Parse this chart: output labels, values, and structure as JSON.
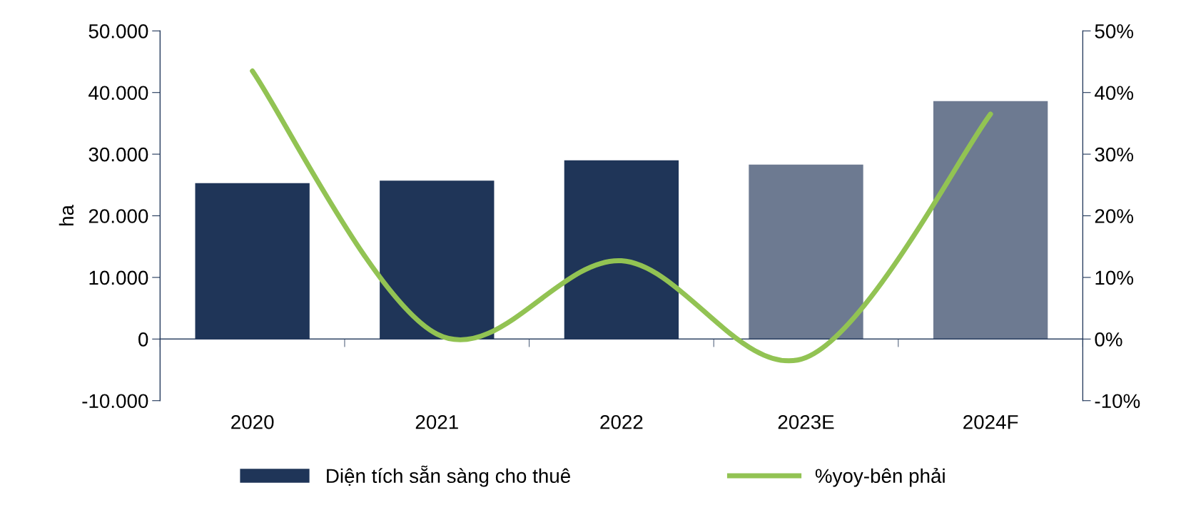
{
  "chart_data": {
    "type": "bar",
    "ylabel": "ha",
    "categories": [
      "2020",
      "2021",
      "2022",
      "2023E",
      "2024F"
    ],
    "series": [
      {
        "name": "Diện tích sẵn sàng cho thuê",
        "type": "bar",
        "color": "#1f3558",
        "colors": [
          "#1f3558",
          "#1f3558",
          "#1f3558",
          "#6d7a91",
          "#6d7a91"
        ],
        "values": [
          25300,
          25700,
          29000,
          28300,
          38600
        ]
      },
      {
        "name": "%yoy-bên phải",
        "type": "line",
        "axis": "y2",
        "color": "#92c353",
        "values": [
          43.5,
          0.8,
          12.7,
          -3,
          36.5
        ]
      }
    ],
    "ylim": [
      -10000,
      50000
    ],
    "yticks": [
      {
        "value": -10000,
        "label": "-10.000"
      },
      {
        "value": 0,
        "label": "0"
      },
      {
        "value": 10000,
        "label": "10.000"
      },
      {
        "value": 20000,
        "label": "20.000"
      },
      {
        "value": 30000,
        "label": "30.000"
      },
      {
        "value": 40000,
        "label": "40.000"
      },
      {
        "value": 50000,
        "label": "50.000"
      }
    ],
    "y2lim": [
      -10,
      50
    ],
    "y2ticks": [
      {
        "value": -10,
        "label": "-10%"
      },
      {
        "value": 0,
        "label": "0%"
      },
      {
        "value": 10,
        "label": "10%"
      },
      {
        "value": 20,
        "label": "20%"
      },
      {
        "value": 30,
        "label": "30%"
      },
      {
        "value": 40,
        "label": "40%"
      },
      {
        "value": 50,
        "label": "50%"
      }
    ],
    "legend": "bottom"
  }
}
